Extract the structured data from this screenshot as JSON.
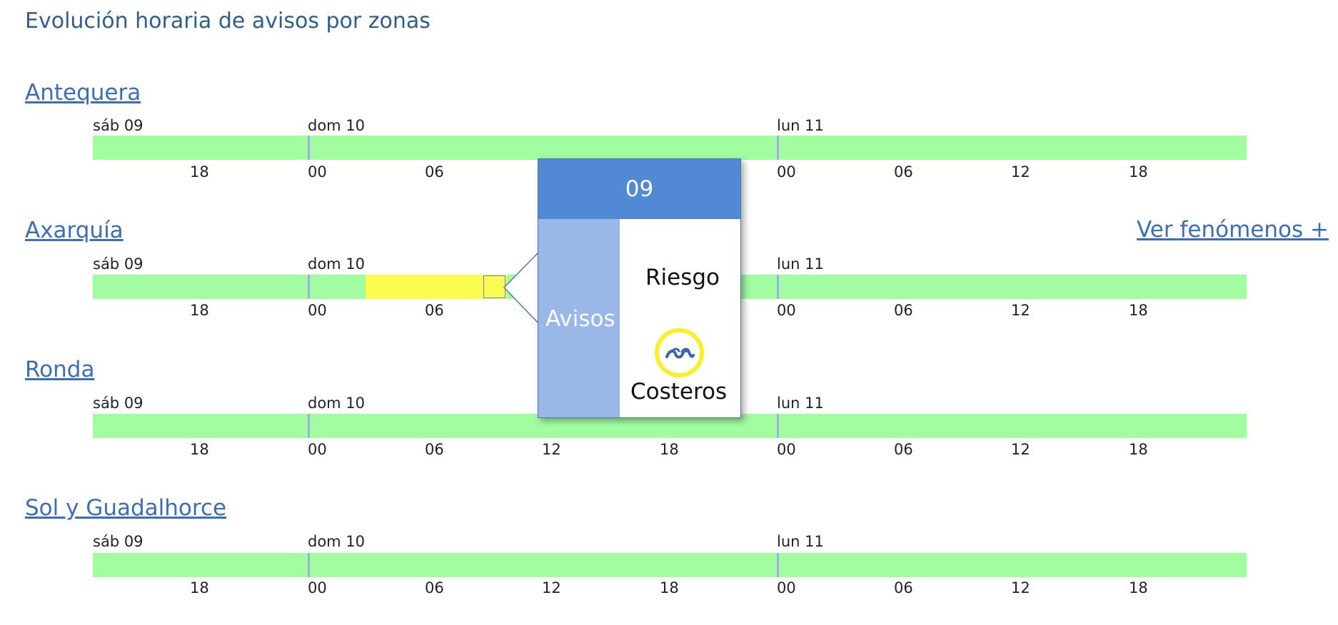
{
  "page": {
    "title": "Evolución horaria de avisos por zonas",
    "more_link": "Ver fenómenos +"
  },
  "day_labels": [
    "sáb 09",
    "dom 10",
    "lun 11"
  ],
  "hour_labels": [
    "18",
    "00",
    "06",
    "12",
    "18",
    "00",
    "06",
    "12",
    "18"
  ],
  "zones": [
    {
      "name": "Antequera"
    },
    {
      "name": "Axarquía"
    },
    {
      "name": "Ronda"
    },
    {
      "name": "Sol y Guadalhorce"
    }
  ],
  "colors": {
    "no_warning": "#a2fca0",
    "yellow_warning": "#fafc50",
    "link": "#3c6eb4"
  },
  "tooltip": {
    "hour": "09",
    "side_label": "Avisos",
    "risk_label": "Riesgo",
    "phenomenon": "Costeros",
    "icon": "coastal-waves-icon",
    "level_color": "#fbee2a"
  }
}
